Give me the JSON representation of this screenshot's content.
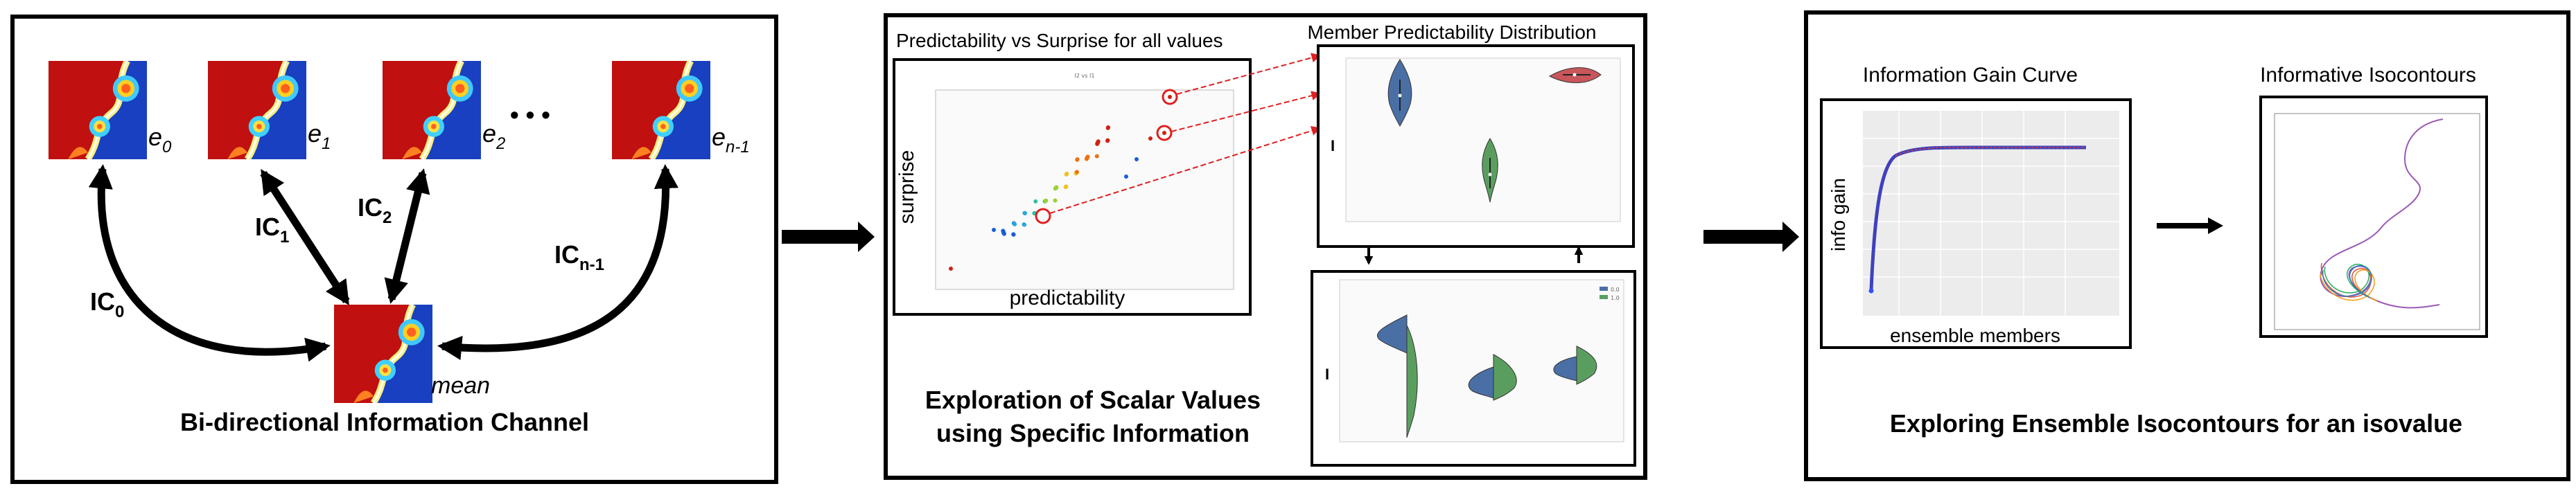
{
  "panel1": {
    "caption": "Bi-directional Information Channel",
    "members": [
      {
        "sym": "e",
        "sub": "0"
      },
      {
        "sym": "e",
        "sub": "1"
      },
      {
        "sym": "e",
        "sub": "2"
      },
      {
        "sym": "e",
        "sub": "n-1"
      }
    ],
    "ellipsis": "• • •",
    "mean_label": "mean",
    "channels": [
      {
        "sym": "IC",
        "sub": "0"
      },
      {
        "sym": "IC",
        "sub": "1"
      },
      {
        "sym": "IC",
        "sub": "2"
      },
      {
        "sym": "IC",
        "sub": "n-1"
      }
    ]
  },
  "panel2": {
    "caption_line1": "Exploration of Scalar Values",
    "caption_line2": "using Specific Information",
    "scatter": {
      "title": "Predictability vs Surprise for all values",
      "inner_title": "I2 vs I1",
      "xlabel": "predictability",
      "ylabel": "surprise",
      "colors": [
        "#1a5cd8",
        "#2aa6e0",
        "#30c0a0",
        "#9bd030",
        "#f0c020",
        "#f07010",
        "#d02010"
      ]
    },
    "violin": {
      "title": "Member Predictability Distribution",
      "axis_glyph": "I",
      "colors": {
        "blue": "#4a6fa5",
        "green": "#5a9e5f",
        "red": "#c8565b"
      }
    },
    "split_violin": {
      "axis_glyph": "I",
      "legend": [
        "0.0",
        "1.0"
      ],
      "colors": {
        "blue": "#4a6fa5",
        "green": "#5a9e5f"
      }
    }
  },
  "panel3": {
    "caption": "Exploring Ensemble Isocontours for an isovalue",
    "gain_curve": {
      "title": "Information Gain Curve",
      "xlabel": "ensemble members",
      "ylabel": "info gain",
      "curve_color": "#4040c0",
      "start_color": "#3050ff"
    },
    "isocontours": {
      "title": "Informative Isocontours"
    }
  }
}
